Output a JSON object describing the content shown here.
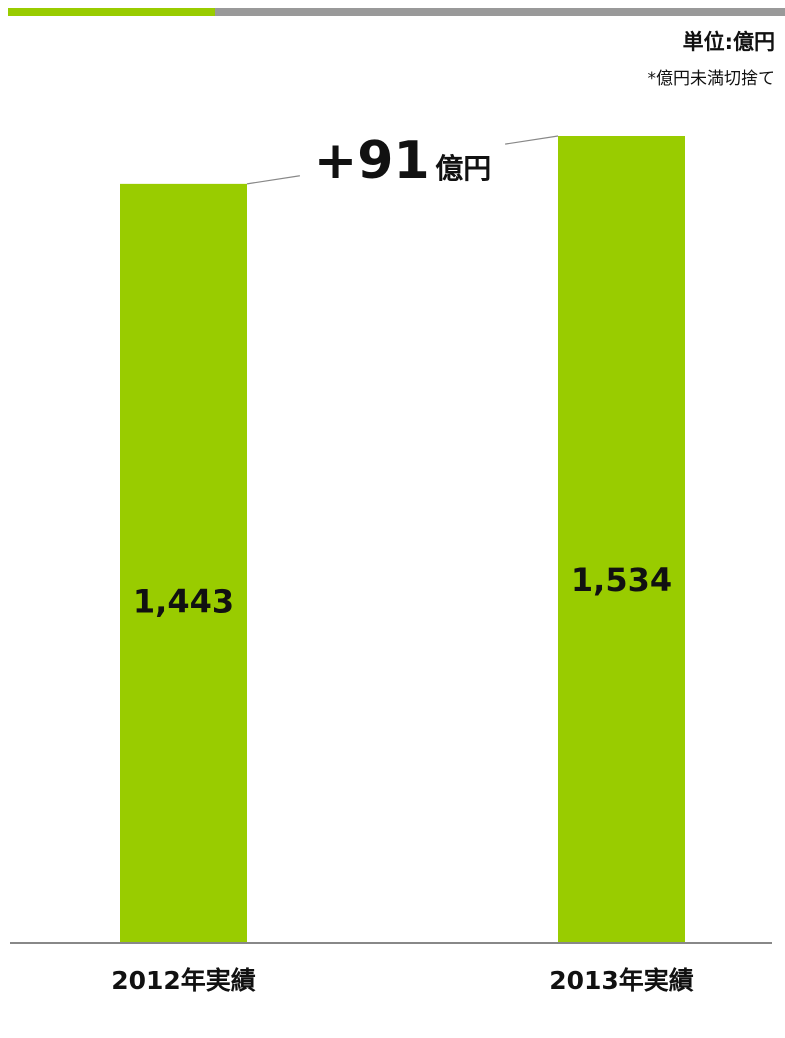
{
  "header": {
    "unit_label": "単位:億円",
    "unit_note": "*億円未満切捨て"
  },
  "colors": {
    "bar": "#99cc00",
    "accent": "#99cc00",
    "rule": "#999999",
    "axis": "#888888"
  },
  "chart_data": {
    "type": "bar",
    "title": "",
    "xlabel": "",
    "ylabel": "",
    "categories": [
      "2012年実績",
      "2013年実績"
    ],
    "values": [
      1443,
      1534
    ],
    "value_labels": [
      "1,443",
      "1,534"
    ],
    "ylim": [
      0,
      1534
    ],
    "grid": false,
    "legend": "none",
    "annotation": {
      "number": "+91",
      "unit": "億円",
      "value": 91
    }
  }
}
